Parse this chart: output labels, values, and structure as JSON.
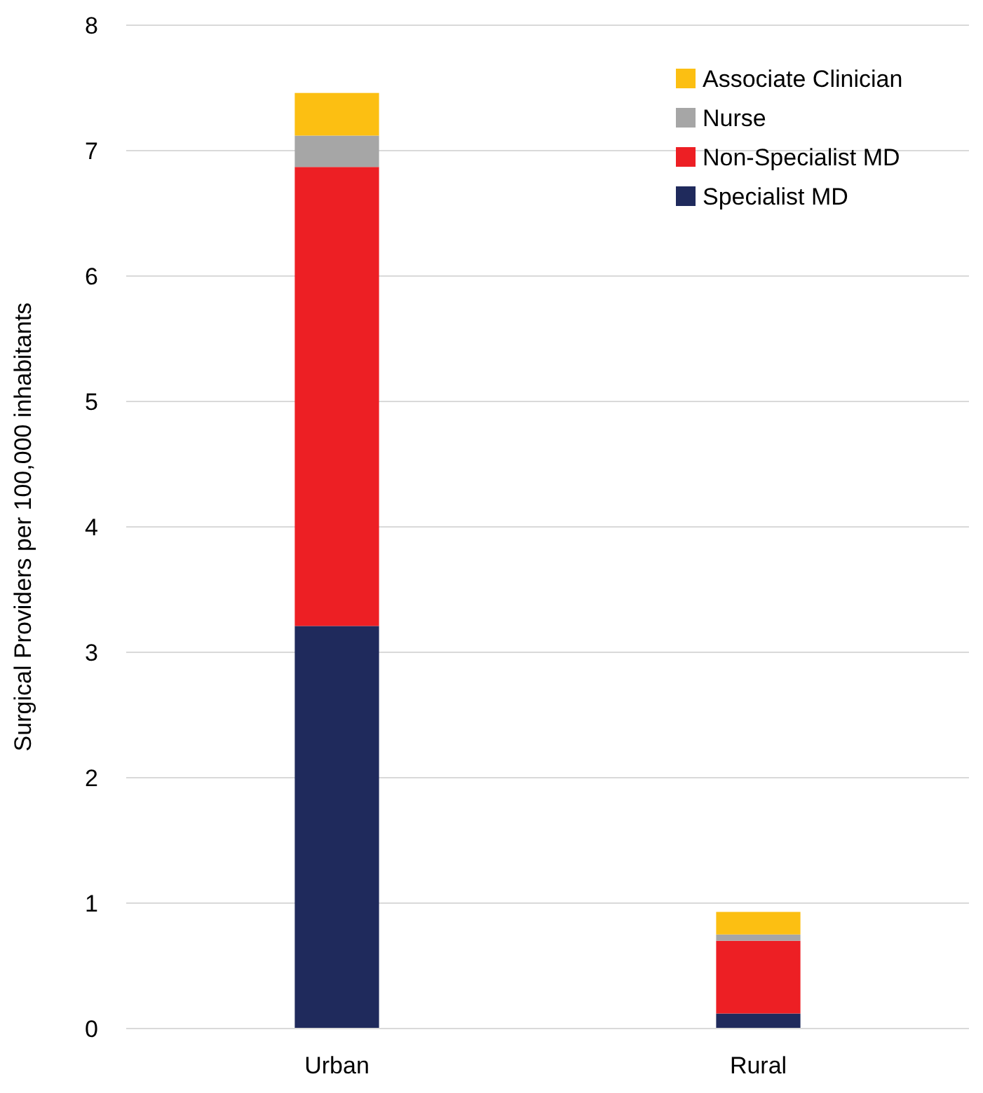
{
  "chart_data": {
    "type": "bar",
    "stacked": true,
    "ylabel": "Surgical Providers per 100,000 inhabitants",
    "categories": [
      "Urban",
      "Rural"
    ],
    "series": [
      {
        "name": "Specialist MD",
        "color": "#1f2a5c",
        "values": [
          3.21,
          0.12
        ]
      },
      {
        "name": "Non-Specialist MD",
        "color": "#ed1f24",
        "values": [
          3.66,
          0.58
        ]
      },
      {
        "name": "Nurse",
        "color": "#a6a6a6",
        "values": [
          0.25,
          0.05
        ]
      },
      {
        "name": "Associate Clinician",
        "color": "#fcbf12",
        "values": [
          0.34,
          0.18
        ]
      }
    ],
    "ylim": [
      0,
      8
    ],
    "yticks": [
      0,
      1,
      2,
      3,
      4,
      5,
      6,
      7,
      8
    ],
    "grid": "y",
    "legend": "top right"
  }
}
